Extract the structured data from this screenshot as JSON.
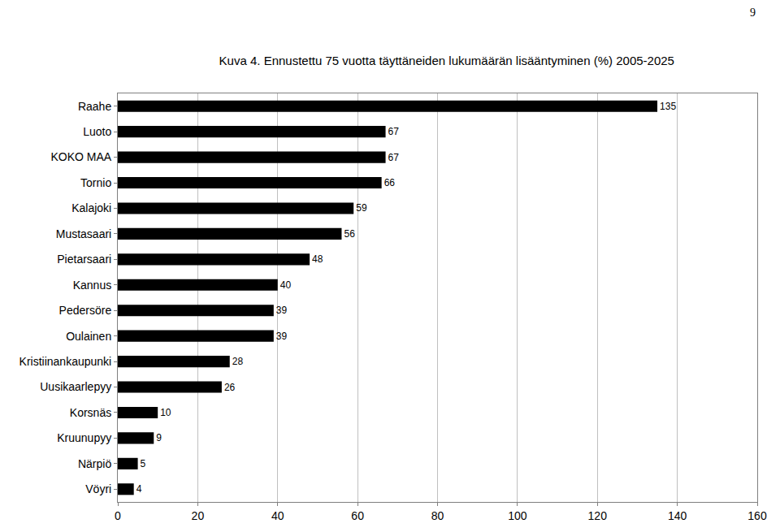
{
  "chart_data": {
    "type": "bar",
    "title": "Kuva 4. Ennustettu 75 vuotta täyttäneiden lukumäärän lisääntyminen (%) 2005-2025",
    "page_number": "9",
    "orientation": "horizontal",
    "categories": [
      "Raahe",
      "Luoto",
      "KOKO MAA",
      "Tornio",
      "Kalajoki",
      "Mustasaari",
      "Pietarsaari",
      "Kannus",
      "Pedersöre",
      "Oulainen",
      "Kristiinankaupunki",
      "Uusikaarlepyy",
      "Korsnäs",
      "Kruunupyy",
      "Närpiö",
      "Vöyri"
    ],
    "values": [
      135,
      67,
      67,
      66,
      59,
      56,
      48,
      40,
      39,
      39,
      28,
      26,
      10,
      9,
      5,
      4
    ],
    "color": "#000000",
    "xlim": [
      0,
      160
    ],
    "xticks": [
      0,
      20,
      40,
      60,
      80,
      100,
      120,
      140,
      160
    ],
    "grid": true,
    "data_labels": true
  }
}
